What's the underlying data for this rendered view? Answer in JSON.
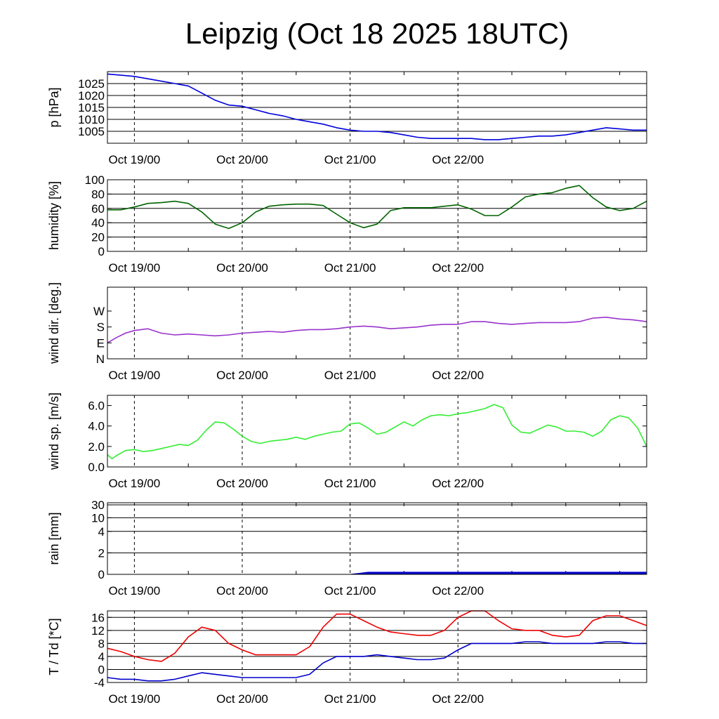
{
  "title": "Leipzig (Oct 18 2025 18UTC)",
  "x_tick_labels": [
    "Oct 19/00",
    "Oct 20/00",
    "Oct 21/00",
    "Oct 22/00"
  ],
  "chart_data": [
    {
      "type": "line",
      "ylabel": "p [hPa]",
      "ylim": [
        1000,
        1030
      ],
      "y_ticks": [
        1005,
        1010,
        1015,
        1020,
        1025
      ],
      "y_tick_labels": [
        "1005",
        "1010",
        "1015",
        "1020",
        "1025"
      ],
      "grid": true,
      "color": "#0000dd",
      "series": [
        {
          "x": [
            0,
            3,
            6,
            9,
            12,
            15,
            18,
            21,
            24,
            27,
            30,
            33,
            36,
            39,
            42,
            45,
            48,
            51,
            54,
            57,
            60,
            63,
            66,
            69,
            72,
            75,
            78,
            81,
            84,
            87,
            90,
            93,
            96,
            99,
            102,
            105,
            108,
            111,
            114,
            117,
            120
          ],
          "y": [
            1029,
            1028.5,
            1028,
            1027,
            1026,
            1025,
            1024,
            1021,
            1018,
            1016,
            1015.5,
            1014,
            1012.5,
            1011.5,
            1010,
            1009,
            1008,
            1006.5,
            1005.5,
            1005,
            1005,
            1004.5,
            1003.5,
            1002.5,
            1002,
            1002,
            1002,
            1002,
            1001.5,
            1001.5,
            1002,
            1002.5,
            1003,
            1003,
            1003.5,
            1004.5,
            1005.5,
            1006.5,
            1006,
            1005.5,
            1005.5
          ]
        }
      ]
    },
    {
      "type": "line",
      "ylabel": "humidity [%]",
      "ylim": [
        0,
        100
      ],
      "y_ticks": [
        0,
        20,
        40,
        60,
        80,
        100
      ],
      "y_tick_labels": [
        "0",
        "20",
        "40",
        "60",
        "80",
        "100"
      ],
      "grid": true,
      "color": "#006400",
      "series": [
        {
          "x": [
            0,
            3,
            6,
            9,
            12,
            15,
            18,
            21,
            24,
            27,
            30,
            33,
            36,
            39,
            42,
            45,
            48,
            51,
            54,
            57,
            60,
            63,
            66,
            69,
            72,
            75,
            78,
            81,
            84,
            87,
            90,
            93,
            96,
            99,
            102,
            105,
            108,
            111,
            114,
            117,
            120
          ],
          "y": [
            58,
            58,
            62,
            67,
            68,
            70,
            67,
            55,
            38,
            32,
            40,
            55,
            63,
            65,
            66,
            66,
            64,
            52,
            40,
            33,
            38,
            57,
            61,
            61,
            61,
            63,
            65,
            59,
            50,
            50,
            62,
            76,
            80,
            82,
            88,
            92,
            75,
            62,
            57,
            60,
            70
          ]
        }
      ]
    },
    {
      "type": "line",
      "ylabel": "wind dir. [deg.]",
      "ylim": [
        0,
        405
      ],
      "y_ticks": [
        0,
        90,
        180,
        270
      ],
      "y_tick_labels": [
        "N",
        "E",
        "S",
        "W"
      ],
      "grid": false,
      "color": "#9933cc",
      "series": [
        {
          "x": [
            0,
            2,
            4,
            6,
            9,
            12,
            15,
            18,
            21,
            24,
            27,
            30,
            33,
            36,
            39,
            42,
            45,
            48,
            51,
            54,
            57,
            60,
            63,
            66,
            69,
            72,
            75,
            78,
            81,
            84,
            87,
            90,
            93,
            96,
            99,
            102,
            105,
            108,
            111,
            114,
            117,
            120
          ],
          "y": [
            90,
            120,
            145,
            160,
            170,
            145,
            135,
            140,
            135,
            130,
            135,
            145,
            150,
            155,
            150,
            160,
            165,
            165,
            170,
            180,
            185,
            180,
            170,
            175,
            180,
            190,
            195,
            195,
            210,
            210,
            200,
            195,
            200,
            205,
            205,
            205,
            210,
            230,
            235,
            225,
            220,
            210
          ]
        }
      ]
    },
    {
      "type": "line",
      "ylabel": "wind sp. [m/s]",
      "ylim": [
        0,
        7
      ],
      "y_ticks": [
        0,
        2,
        4,
        6
      ],
      "y_tick_labels": [
        "0.0",
        "2.0",
        "4.0",
        "6.0"
      ],
      "grid": false,
      "color": "#33ee33",
      "series": [
        {
          "x": [
            0,
            1,
            2,
            4,
            6,
            8,
            10,
            12,
            14,
            16,
            18,
            20,
            22,
            24,
            26,
            28,
            30,
            32,
            34,
            36,
            38,
            40,
            42,
            44,
            46,
            48,
            50,
            52,
            54,
            56,
            58,
            60,
            62,
            64,
            66,
            68,
            70,
            72,
            74,
            76,
            78,
            80,
            82,
            84,
            86,
            88,
            90,
            92,
            94,
            96,
            98,
            100,
            102,
            104,
            106,
            108,
            110,
            112,
            114,
            116,
            118,
            120
          ],
          "y": [
            1.2,
            0.8,
            1.1,
            1.6,
            1.7,
            1.5,
            1.6,
            1.8,
            2.0,
            2.2,
            2.1,
            2.6,
            3.6,
            4.4,
            4.3,
            3.7,
            3.0,
            2.5,
            2.3,
            2.5,
            2.6,
            2.7,
            2.9,
            2.7,
            3.0,
            3.2,
            3.4,
            3.5,
            4.2,
            4.3,
            3.8,
            3.2,
            3.4,
            3.9,
            4.4,
            4.0,
            4.6,
            5.0,
            5.1,
            5.0,
            5.2,
            5.3,
            5.5,
            5.7,
            6.1,
            5.8,
            4.1,
            3.4,
            3.3,
            3.7,
            4.1,
            3.9,
            3.5,
            3.5,
            3.4,
            3.0,
            3.5,
            4.6,
            5.0,
            4.8,
            3.8,
            2.0
          ]
        }
      ]
    },
    {
      "type": "area",
      "ylabel": "rain [mm]",
      "ylim": [
        0,
        32
      ],
      "y_ticks": [
        0,
        2,
        4,
        10,
        30
      ],
      "y_tick_labels": [
        "0",
        "2",
        "4",
        "10",
        "30"
      ],
      "grid": true,
      "color": "#0000cc",
      "series": [
        {
          "x": [
            0,
            54,
            56,
            58,
            120
          ],
          "y": [
            0,
            0,
            0.1,
            0.2,
            0.2
          ]
        }
      ]
    },
    {
      "type": "line",
      "ylabel": "T / Td [*C]",
      "ylim": [
        -4,
        18
      ],
      "y_ticks": [
        -4,
        0,
        4,
        8,
        12,
        16
      ],
      "y_tick_labels": [
        "-4",
        "0",
        "4",
        "8",
        "12",
        "16"
      ],
      "grid": true,
      "series": [
        {
          "color": "#ee0000",
          "x": [
            0,
            3,
            6,
            9,
            12,
            15,
            18,
            21,
            24,
            27,
            30,
            33,
            36,
            39,
            42,
            45,
            48,
            51,
            54,
            57,
            60,
            63,
            66,
            69,
            72,
            75,
            78,
            81,
            84,
            87,
            90,
            93,
            96,
            99,
            102,
            105,
            108,
            111,
            114,
            117,
            120
          ],
          "y": [
            6.5,
            5.5,
            4,
            3,
            2.5,
            5,
            10,
            13,
            12,
            8,
            6,
            4.5,
            4.5,
            4.5,
            4.5,
            7,
            13,
            17,
            17,
            15,
            13,
            11.5,
            11,
            10.5,
            10.5,
            12,
            16,
            18,
            18,
            15,
            12.5,
            12,
            12,
            10.5,
            10,
            10.5,
            15,
            16.5,
            16.5,
            15,
            13.5
          ]
        },
        {
          "color": "#0000cc",
          "x": [
            0,
            3,
            6,
            9,
            12,
            15,
            18,
            21,
            24,
            27,
            30,
            33,
            36,
            39,
            42,
            45,
            48,
            51,
            54,
            57,
            60,
            63,
            66,
            69,
            72,
            75,
            78,
            81,
            84,
            87,
            90,
            93,
            96,
            99,
            102,
            105,
            108,
            111,
            114,
            117,
            120
          ],
          "y": [
            -2.5,
            -3,
            -3,
            -3.5,
            -3.5,
            -3,
            -2,
            -1,
            -1.5,
            -2,
            -2.5,
            -2.5,
            -2.5,
            -2.5,
            -2.5,
            -1.5,
            2,
            4,
            4,
            4,
            4.5,
            4,
            3.5,
            3,
            3,
            3.5,
            6,
            8,
            8,
            8,
            8,
            8.5,
            8.5,
            8,
            8,
            8,
            8,
            8.5,
            8.5,
            8,
            8
          ]
        }
      ]
    }
  ]
}
